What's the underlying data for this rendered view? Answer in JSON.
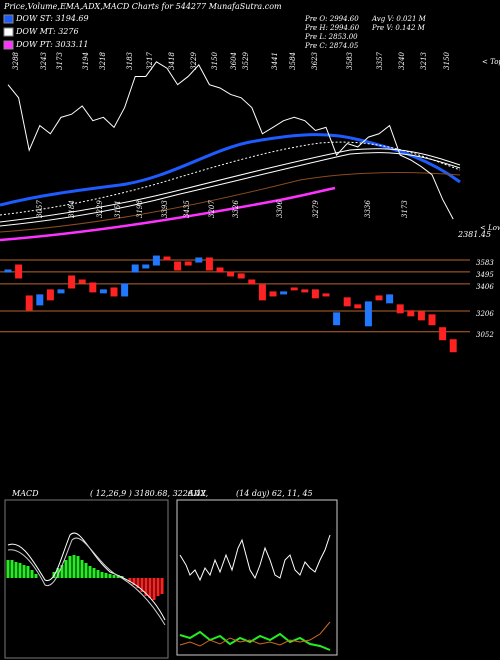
{
  "header": {
    "title": "Price,Volume,EMA,ADX,MACD Charts for 544277 MunafaSutra.com",
    "legend": [
      {
        "label": "DOW ST: 3194.69",
        "color": "#1e5cff"
      },
      {
        "label": "DOW MT: 3276",
        "color": "#ffffff"
      },
      {
        "label": "DOW PT: 3033.11",
        "color": "#ff33ff"
      }
    ],
    "stats_left": [
      "Pre O: 2994.60",
      "Pre H: 2994.60",
      "Pre L: 2853.00",
      "Pre C: 2874.05"
    ],
    "stats_right": [
      "Avg V: 0.021 M",
      "Pre V: 0.142 M"
    ]
  },
  "tops": [
    3288,
    3243,
    3173,
    3194,
    3218,
    3183,
    3217,
    3418,
    3229,
    3150,
    3604,
    3529,
    3441,
    3584,
    3623,
    3583,
    3357,
    3240,
    3213,
    3150
  ],
  "tops_label": "< Tops",
  "lows": [
    3057,
    3184,
    3229,
    3151,
    3198,
    3393,
    3435,
    3207,
    3326,
    3306,
    3279,
    3336,
    3173
  ],
  "lows_label": "< Lows",
  "last_low": 2381.45,
  "chart_data": {
    "type": "candlestick",
    "open": [
      3494,
      3546,
      3317,
      3251,
      3362,
      3340,
      3465,
      3435,
      3413,
      3340,
      3376,
      3317,
      3494,
      3524,
      3546,
      3605,
      3568,
      3568,
      3568,
      3598,
      3524,
      3494,
      3480,
      3435,
      3399,
      3347,
      3332,
      3376,
      3362,
      3362,
      3332,
      3104,
      3303,
      3251,
      3096,
      3317,
      3266,
      3251,
      3207,
      3200,
      3177,
      3082,
      2993
    ],
    "close": [
      3509,
      3450,
      3214,
      3325,
      3288,
      3362,
      3376,
      3413,
      3347,
      3362,
      3317,
      3406,
      3546,
      3546,
      3612,
      3583,
      3509,
      3546,
      3598,
      3509,
      3494,
      3465,
      3450,
      3406,
      3288,
      3317,
      3347,
      3362,
      3347,
      3303,
      3317,
      3192,
      3244,
      3229,
      3273,
      3288,
      3325,
      3192,
      3170,
      3140,
      3104,
      2993,
      2904
    ],
    "up_color": "#2277ff",
    "down_color": "#ff2222",
    "level_color": "#b8652a",
    "ylim": [
      2880,
      3620
    ],
    "yticks": [
      3583,
      3495,
      3406,
      3206,
      3052
    ]
  },
  "macd": {
    "title": "MACD",
    "values": "( 12,26,9 ) 3180.68, 3226.42,"
  },
  "adx": {
    "title": "ADX",
    "values": "(14 day) 62, 11, 45"
  }
}
